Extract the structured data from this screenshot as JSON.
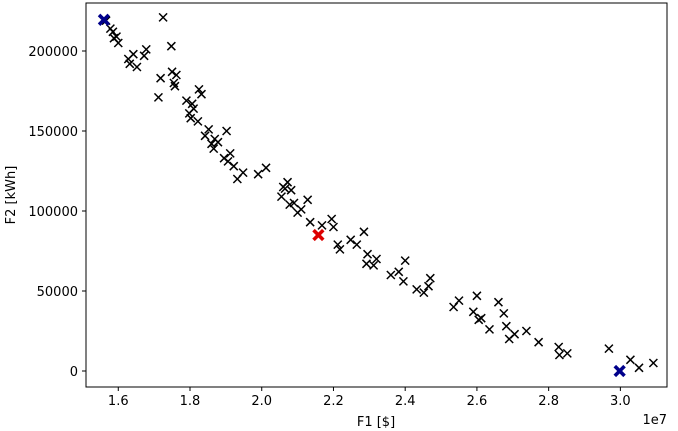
{
  "chart_data": {
    "type": "scatter",
    "xlabel": "F1 [$]",
    "ylabel": "F2 [kWh]",
    "x_offset_label": "1e7",
    "xlim": [
      1.51,
      3.13
    ],
    "ylim": [
      -10000,
      230000
    ],
    "x_ticks": [
      1.6,
      1.8,
      2.0,
      2.2,
      2.4,
      2.6,
      2.8,
      3.0
    ],
    "x_tick_labels": [
      "1.6",
      "1.8",
      "2.0",
      "2.2",
      "2.4",
      "2.6",
      "2.8",
      "3.0"
    ],
    "y_ticks": [
      0,
      50000,
      100000,
      150000,
      200000
    ],
    "y_tick_labels": [
      "0",
      "50000",
      "100000",
      "150000",
      "200000"
    ],
    "grid": false,
    "series": [
      {
        "color": "#000000",
        "marker": "x",
        "points": [
          [
            1.566,
            219000
          ],
          [
            1.578,
            214000
          ],
          [
            1.585,
            212000
          ],
          [
            1.588,
            208000
          ],
          [
            1.595,
            209000
          ],
          [
            1.6,
            205000
          ],
          [
            1.632,
            192000
          ],
          [
            1.628,
            195000
          ],
          [
            1.642,
            198000
          ],
          [
            1.652,
            190000
          ],
          [
            1.672,
            197000
          ],
          [
            1.678,
            201000
          ],
          [
            1.725,
            221000
          ],
          [
            1.712,
            171000
          ],
          [
            1.718,
            183000
          ],
          [
            1.748,
            203000
          ],
          [
            1.75,
            187000
          ],
          [
            1.755,
            180000
          ],
          [
            1.758,
            178000
          ],
          [
            1.762,
            185000
          ],
          [
            1.79,
            169000
          ],
          [
            1.798,
            161000
          ],
          [
            1.802,
            158000
          ],
          [
            1.806,
            167000
          ],
          [
            1.81,
            164000
          ],
          [
            1.822,
            156000
          ],
          [
            1.825,
            176000
          ],
          [
            1.832,
            173000
          ],
          [
            1.842,
            147000
          ],
          [
            1.852,
            151000
          ],
          [
            1.86,
            142000
          ],
          [
            1.866,
            139000
          ],
          [
            1.869,
            145000
          ],
          [
            1.878,
            143000
          ],
          [
            1.895,
            133000
          ],
          [
            1.902,
            150000
          ],
          [
            1.906,
            131000
          ],
          [
            1.912,
            136000
          ],
          [
            1.922,
            128000
          ],
          [
            1.932,
            120000
          ],
          [
            1.948,
            124000
          ],
          [
            1.99,
            123000
          ],
          [
            2.012,
            127000
          ],
          [
            2.055,
            109000
          ],
          [
            2.06,
            115000
          ],
          [
            2.065,
            114000
          ],
          [
            2.072,
            118000
          ],
          [
            2.078,
            104000
          ],
          [
            2.082,
            113000
          ],
          [
            2.09,
            105000
          ],
          [
            2.1,
            99000
          ],
          [
            2.11,
            101000
          ],
          [
            2.128,
            107000
          ],
          [
            2.135,
            93000
          ],
          [
            2.168,
            91000
          ],
          [
            2.195,
            95000
          ],
          [
            2.2,
            90000
          ],
          [
            2.212,
            79000
          ],
          [
            2.218,
            76000
          ],
          [
            2.248,
            82000
          ],
          [
            2.265,
            79000
          ],
          [
            2.285,
            87000
          ],
          [
            2.292,
            67000
          ],
          [
            2.295,
            73000
          ],
          [
            2.312,
            66000
          ],
          [
            2.32,
            70000
          ],
          [
            2.36,
            60000
          ],
          [
            2.382,
            62000
          ],
          [
            2.395,
            56000
          ],
          [
            2.4,
            69000
          ],
          [
            2.432,
            51000
          ],
          [
            2.452,
            49000
          ],
          [
            2.465,
            53000
          ],
          [
            2.47,
            58000
          ],
          [
            2.535,
            40000
          ],
          [
            2.55,
            44000
          ],
          [
            2.59,
            37000
          ],
          [
            2.6,
            47000
          ],
          [
            2.605,
            32000
          ],
          [
            2.612,
            33000
          ],
          [
            2.635,
            26000
          ],
          [
            2.66,
            43000
          ],
          [
            2.675,
            36000
          ],
          [
            2.682,
            28000
          ],
          [
            2.69,
            20000
          ],
          [
            2.705,
            23000
          ],
          [
            2.738,
            25000
          ],
          [
            2.772,
            18000
          ],
          [
            2.828,
            15000
          ],
          [
            2.83,
            10000
          ],
          [
            2.852,
            11000
          ],
          [
            2.968,
            14000
          ],
          [
            3.028,
            7000
          ],
          [
            3.052,
            2000
          ],
          [
            3.092,
            5000
          ]
        ]
      },
      {
        "color": "#00008b",
        "marker": "X",
        "points": [
          [
            1.56,
            219500
          ],
          [
            2.998,
            0
          ]
        ]
      },
      {
        "color": "#dd0000",
        "marker": "X",
        "points": [
          [
            2.158,
            85000
          ]
        ]
      }
    ]
  }
}
